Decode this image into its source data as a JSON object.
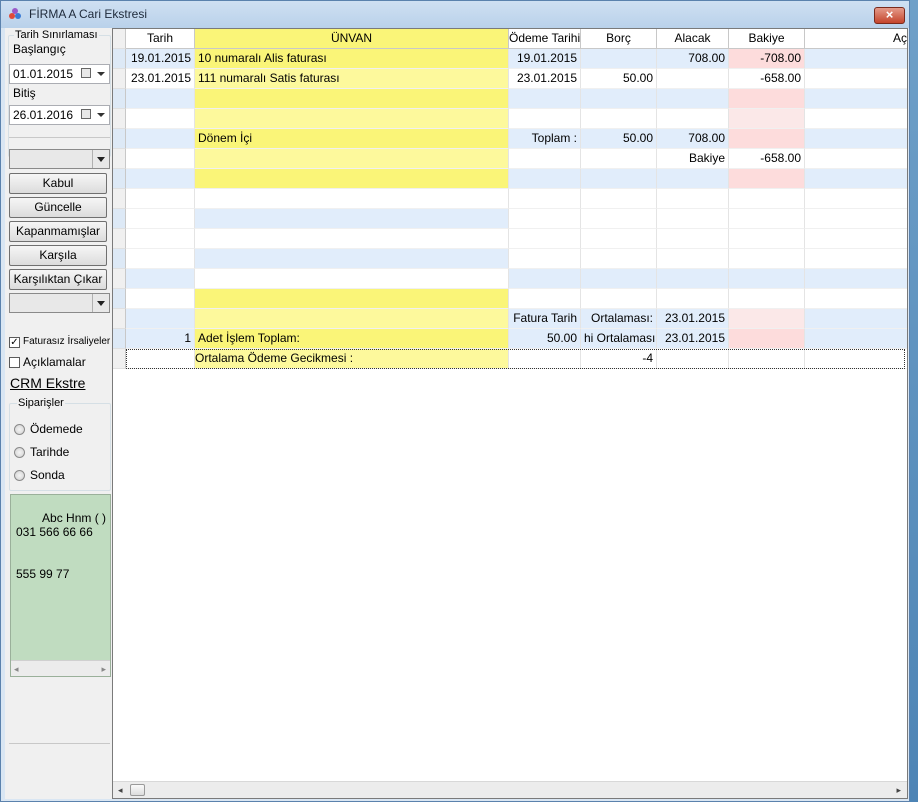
{
  "window": {
    "title": "FİRMA A Cari Ekstresi",
    "close_label": "×",
    "accent_color": "#c5442b"
  },
  "left_panel": {
    "date_group_title": "Tarih Sınırlaması",
    "start_label": "Başlangıç",
    "start_value": "01.01.2015",
    "end_label": "Bitiş",
    "end_value": "26.01.2016",
    "buttons": [
      "Kabul",
      "Güncelle",
      "Kapanmamışlar",
      "Karşıla",
      "Karşılıktan Çıkar"
    ],
    "checkbox_faturasiz_label": "Faturasız İrsaliyeler",
    "checkbox_faturasiz_checked": "✓",
    "checkbox_aciklamalar_label": "Açıklamalar",
    "crm_link": "CRM Ekstre",
    "orders_group_title": "Siparişler",
    "radios": [
      "Ödemede",
      "Tarihde",
      "Sonda"
    ],
    "notes_text": "Abc Hnm ( )\n031 566 66 66\n\n\n555 99 77",
    "scroll_left_icon": "◂",
    "scroll_right_icon": "▸"
  },
  "grid": {
    "columns": [
      "Tarih",
      "ÜNVAN",
      "Ödeme Tarihi",
      "Borç",
      "Alacak",
      "Bakiye",
      "Aç"
    ],
    "rows": [
      [
        "19.01.2015",
        "10 numaralı Alis faturası",
        "19.01.2015",
        "",
        "708.00",
        "-708.00",
        ""
      ],
      [
        "23.01.2015",
        "111 numaralı Satis faturası",
        "23.01.2015",
        "50.00",
        "",
        "-658.00",
        ""
      ],
      [
        "",
        "",
        "",
        "",
        "",
        "",
        ""
      ],
      [
        "",
        "",
        "",
        "",
        "",
        "",
        ""
      ],
      [
        "",
        "Dönem İçi",
        "Toplam  :",
        "50.00",
        "708.00",
        "",
        ""
      ],
      [
        "",
        "",
        "",
        "",
        "Bakiye",
        "-658.00",
        ""
      ],
      [
        "",
        "",
        "",
        "",
        "",
        "",
        ""
      ],
      [
        "",
        "",
        "",
        "",
        "",
        "",
        ""
      ],
      [
        "",
        "",
        "",
        "",
        "",
        "",
        ""
      ],
      [
        "",
        "",
        "",
        "",
        "",
        "",
        ""
      ],
      [
        "",
        "",
        "",
        "",
        "",
        "",
        ""
      ],
      [
        "",
        "",
        "",
        "",
        "",
        "",
        ""
      ],
      [
        "",
        "",
        "",
        "",
        "",
        "",
        ""
      ],
      [
        "",
        "",
        "Fatura Tarih",
        "Ortalaması:",
        "23.01.2015",
        "",
        ""
      ],
      [
        "1",
        "Adet İşlem Toplam:",
        "50.00",
        "hi Ortalaması :",
        "23.01.2015",
        "",
        ""
      ],
      [
        "",
        "Ortalama Ödeme Gecikmesi :",
        "",
        "-4",
        "",
        "",
        ""
      ]
    ],
    "colors": {
      "blue_row": "#e1edfb",
      "white_row": "#ffffff",
      "yellow_col": "#faf578",
      "yellow_col_alt": "#fdf99c",
      "pink_col": "#fddcdc",
      "pink_col_alt": "#fbe8e8"
    },
    "scroll_left_icon": "◂",
    "scroll_right_icon": "▸"
  }
}
